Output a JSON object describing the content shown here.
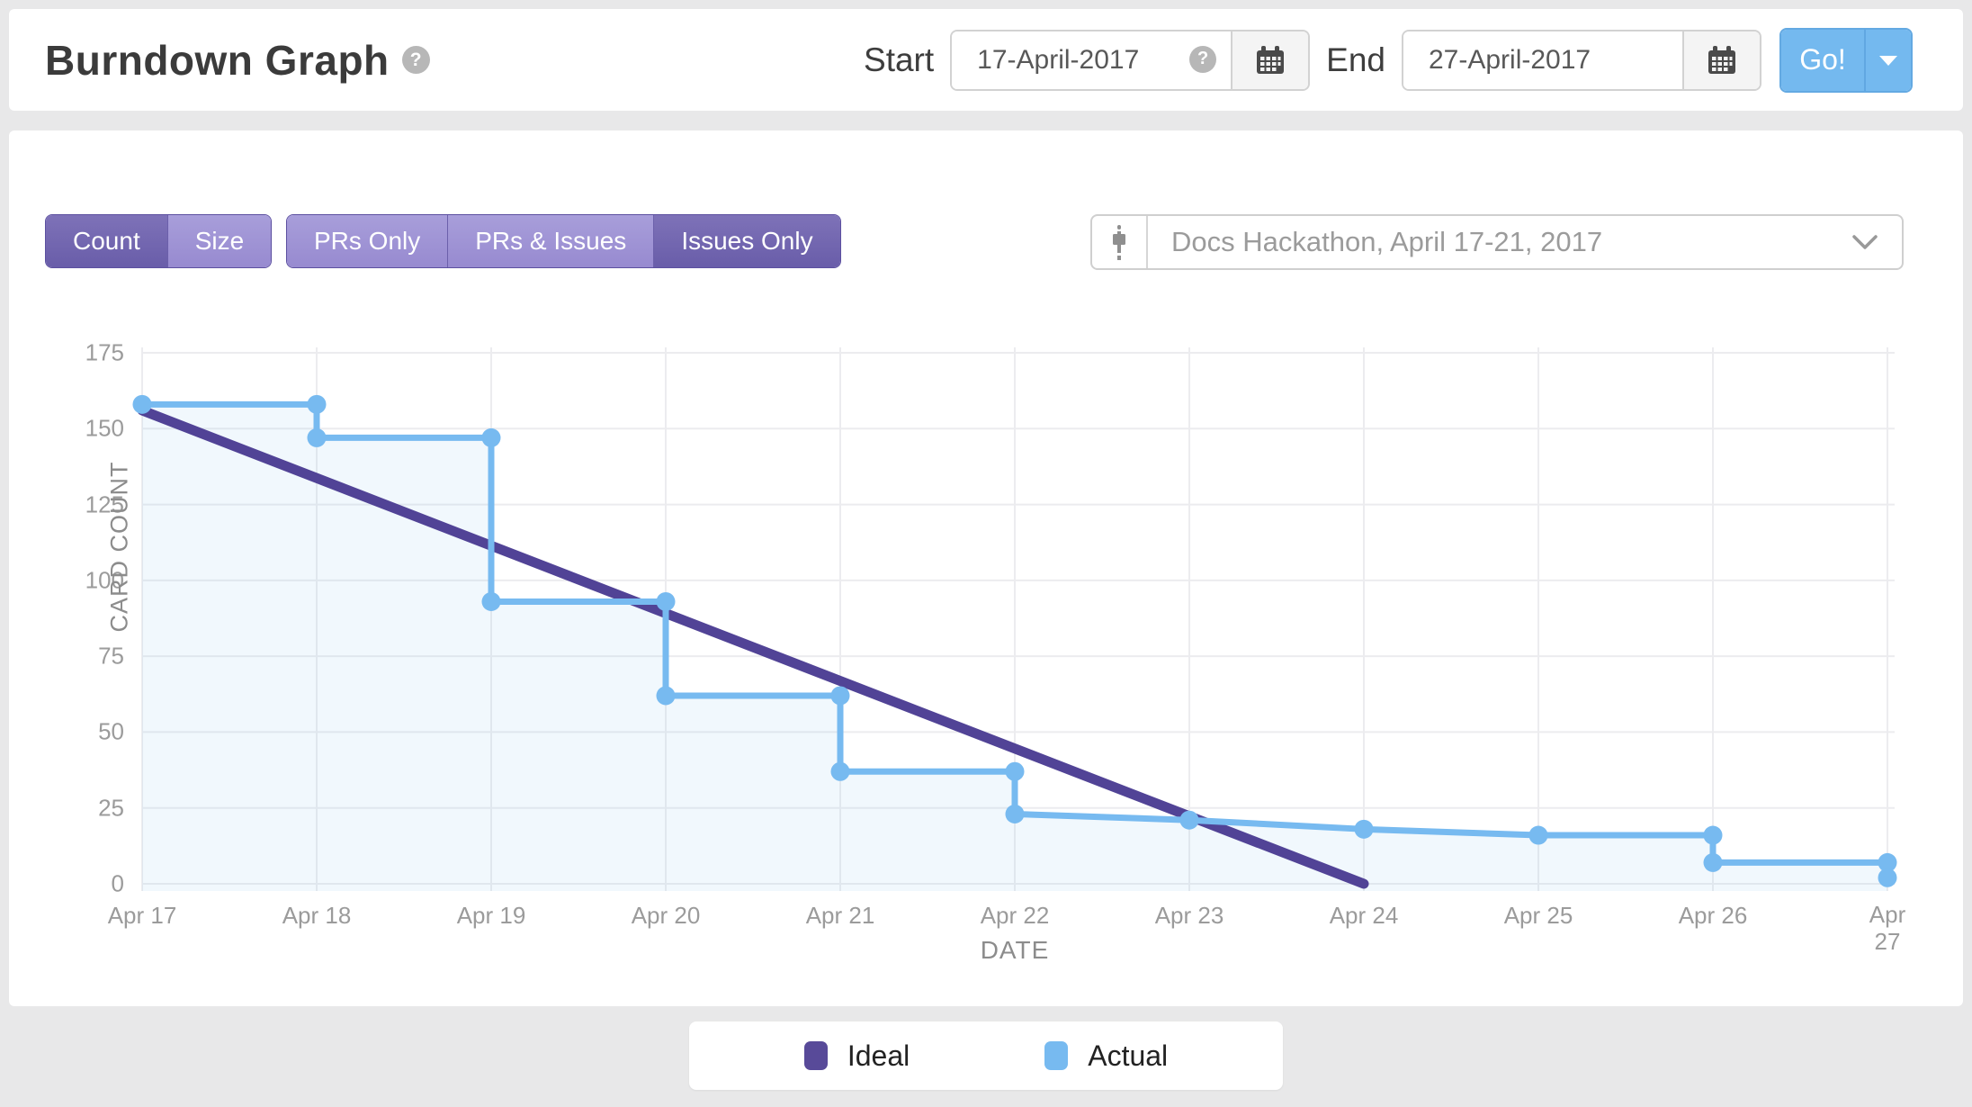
{
  "header": {
    "title": "Burndown Graph",
    "help_icon": "?",
    "start_label": "Start",
    "start_value": "17-April-2017",
    "end_label": "End",
    "end_value": "27-April-2017",
    "go_label": "Go!"
  },
  "toolbar": {
    "metric_buttons": [
      {
        "label": "Count",
        "active": true
      },
      {
        "label": "Size",
        "active": false
      }
    ],
    "filter_buttons": [
      {
        "label": "PRs Only",
        "active": false
      },
      {
        "label": "PRs & Issues",
        "active": false
      },
      {
        "label": "Issues Only",
        "active": true
      }
    ],
    "milestone_select": {
      "icon": "milestone-icon",
      "value": "Docs Hackathon, April 17-21, 2017"
    }
  },
  "chart_data": {
    "type": "line",
    "title": "Burndown Graph",
    "xlabel": "DATE",
    "ylabel": "CARD COUNT",
    "x_ticks": [
      "Apr 17",
      "Apr 18",
      "Apr 19",
      "Apr 20",
      "Apr 21",
      "Apr 22",
      "Apr 23",
      "Apr 24",
      "Apr 25",
      "Apr 26",
      "Apr 27"
    ],
    "y_ticks": [
      175,
      150,
      125,
      100,
      75,
      50,
      25,
      0
    ],
    "ylim": [
      0,
      175
    ],
    "grid": true,
    "legend_position": "bottom-center",
    "series": [
      {
        "name": "Ideal",
        "color": "#514396",
        "line_width": 11,
        "points": [
          [
            0,
            156
          ],
          [
            7,
            0
          ]
        ]
      },
      {
        "name": "Actual",
        "color": "#77baf0",
        "line_width": 7,
        "area_fill": "rgba(119,186,240,0.10)",
        "points": [
          [
            0,
            158
          ],
          [
            1,
            158
          ],
          [
            1,
            147
          ],
          [
            2,
            147
          ],
          [
            2,
            93
          ],
          [
            3,
            93
          ],
          [
            3,
            62
          ],
          [
            4,
            62
          ],
          [
            4,
            37
          ],
          [
            5,
            37
          ],
          [
            5,
            23
          ],
          [
            6,
            21
          ],
          [
            7,
            18
          ],
          [
            8,
            16
          ],
          [
            9,
            16
          ],
          [
            9,
            7
          ],
          [
            10,
            7
          ],
          [
            10,
            2
          ]
        ]
      }
    ],
    "actual_by_date": {
      "Apr 17": 158,
      "Apr 18": 147,
      "Apr 19": 93,
      "Apr 20": 62,
      "Apr 21": 37,
      "Apr 22": 23,
      "Apr 23": 21,
      "Apr 24": 18,
      "Apr 25": 16,
      "Apr 26": 7,
      "Apr 27": 2
    },
    "ideal_end_date": "Apr 24"
  },
  "legend": {
    "items": [
      {
        "label": "Ideal",
        "color": "#584a99"
      },
      {
        "label": "Actual",
        "color": "#77baf0"
      }
    ]
  },
  "colors": {
    "page_bg": "#e8e8e9",
    "card_bg": "#ffffff",
    "accent_blue": "#74b9ef",
    "purple_active": "#695da9",
    "purple_inactive": "#978ad0",
    "grid_line": "#ececef",
    "tick_text": "#9b9b9b"
  }
}
